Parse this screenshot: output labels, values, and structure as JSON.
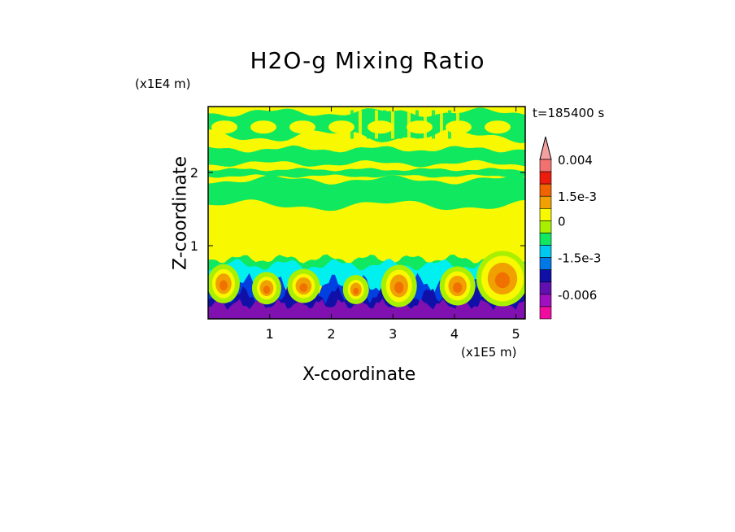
{
  "chart_data": {
    "type": "heatmap",
    "title": "H2O-g Mixing Ratio",
    "xlabel": "X-coordinate",
    "ylabel": "Z-coordinate",
    "x_scale_note": "(x1E5 m)",
    "y_scale_note": "(x1E4 m)",
    "time_label": "t=185400 s",
    "xlim": [
      0,
      5.15
    ],
    "ylim": [
      0,
      2.9
    ],
    "x_ticks": [
      1,
      2,
      3,
      4,
      5
    ],
    "y_ticks": [
      1,
      2
    ],
    "layers": [
      {
        "z_from": 2.9,
        "z_to": 2.25,
        "level": "yellow-green"
      },
      {
        "z_from": 2.25,
        "z_to": 2.1,
        "level": "green"
      },
      {
        "z_from": 2.1,
        "z_to": 1.95,
        "level": "yellow"
      },
      {
        "z_from": 1.95,
        "z_to": 1.55,
        "level": "green-yellow"
      },
      {
        "z_from": 1.55,
        "z_to": 0.8,
        "level": "yellow"
      },
      {
        "z_from": 0.8,
        "z_to": 0.72,
        "level": "green"
      },
      {
        "z_from": 0.72,
        "z_to": 0.45,
        "level": "cyan"
      },
      {
        "z_from": 0.45,
        "z_to": 0.2,
        "level": "blue"
      },
      {
        "z_from": 0.2,
        "z_to": 0.0,
        "level": "purple"
      }
    ],
    "colorbar": {
      "levels": [
        {
          "color": "#f4a0a0",
          "label": ""
        },
        {
          "color": "#f27272",
          "label": "0.004"
        },
        {
          "color": "#ee1c0c",
          "label": ""
        },
        {
          "color": "#f06400",
          "label": ""
        },
        {
          "color": "#f0a000",
          "label": "1.5e-3"
        },
        {
          "color": "#f8f800",
          "label": ""
        },
        {
          "color": "#a8f000",
          "label": "0"
        },
        {
          "color": "#10e860",
          "label": ""
        },
        {
          "color": "#00c8f0",
          "label": ""
        },
        {
          "color": "#0078e8",
          "label": "-1.5e-3"
        },
        {
          "color": "#1010a8",
          "label": ""
        },
        {
          "color": "#6010b0",
          "label": ""
        },
        {
          "color": "#a010c0",
          "label": "-0.006"
        },
        {
          "color": "#f00ca0",
          "label": ""
        }
      ],
      "tick_labels": [
        "0.004",
        "1.5e-3",
        "0",
        "-1.5e-3",
        "-0.006"
      ]
    },
    "colors": {
      "yellow": "#f8f800",
      "yellow_green": "#a8f000",
      "green": "#10e860",
      "cyan": "#00f0f0",
      "blue": "#0040e0",
      "navy": "#1010a8",
      "purple": "#8010b0",
      "orange": "#f0a000",
      "dark_orange": "#f07000"
    }
  }
}
